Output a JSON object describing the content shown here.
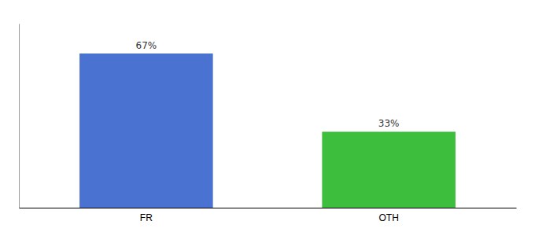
{
  "chart_data": {
    "type": "bar",
    "categories": [
      "FR",
      "OTH"
    ],
    "values": [
      67,
      33
    ],
    "value_labels": [
      "67%",
      "33%"
    ],
    "colors": [
      "#4a72d1",
      "#3dbe3d"
    ],
    "ylim": [
      0,
      80
    ],
    "data_labels": true,
    "tick_labels": "x",
    "grid": false
  }
}
